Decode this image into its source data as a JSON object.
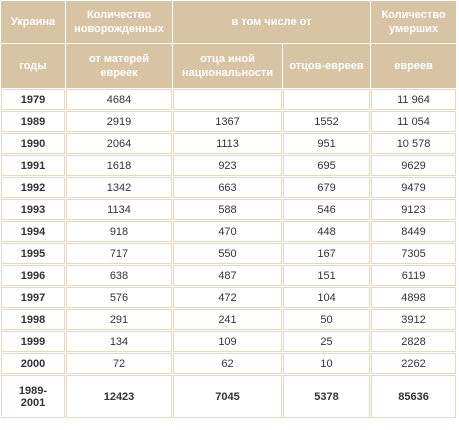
{
  "table": {
    "header": {
      "row1": [
        "Украина",
        "Количество новорожденных",
        "в том числе от",
        "Количество умерших"
      ],
      "row2": [
        "годы",
        "от матерей евреек",
        "отца иной национальности",
        "отцов-евреев",
        "евреев"
      ]
    },
    "rows": [
      [
        "1979",
        "4684",
        null,
        null,
        "11 964"
      ],
      [
        "1989",
        "2919",
        "1367",
        "1552",
        "11 054"
      ],
      [
        "1990",
        "2064",
        "1113",
        "951",
        "10 578"
      ],
      [
        "1991",
        "1618",
        "923",
        "695",
        "9629"
      ],
      [
        "1992",
        "1342",
        "663",
        "679",
        "9479"
      ],
      [
        "1993",
        "1134",
        "588",
        "546",
        "9123"
      ],
      [
        "1994",
        "918",
        "470",
        "448",
        "8449"
      ],
      [
        "1995",
        "717",
        "550",
        "167",
        "7305"
      ],
      [
        "1996",
        "638",
        "487",
        "151",
        "6119"
      ],
      [
        "1997",
        "576",
        "472",
        "104",
        "4898"
      ],
      [
        "1998",
        "291",
        "241",
        "50",
        "3912"
      ],
      [
        "1999",
        "134",
        "109",
        "25",
        "2828"
      ],
      [
        "2000",
        "72",
        "62",
        "10",
        "2262"
      ],
      [
        "1989-2001",
        "12423",
        "7045",
        "5378",
        "85636"
      ]
    ]
  }
}
